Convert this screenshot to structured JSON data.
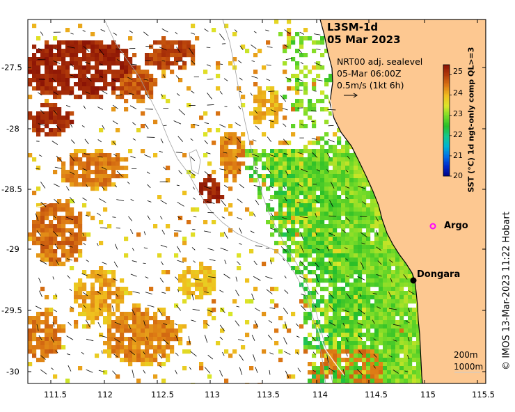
{
  "title": {
    "line1": "L3SM-1d",
    "line2": "05 Mar 2023"
  },
  "info": {
    "line1": "NRT00 adj. sealevel",
    "line2": "05-Mar 06:00Z",
    "line3": "0.5m/s (1kt 6h)"
  },
  "axes": {
    "lon_ticks": [
      "111.5",
      "112",
      "112.5",
      "113",
      "113.5",
      "114",
      "114.5",
      "115",
      "115.5"
    ],
    "lat_ticks": [
      "-27.5",
      "-28",
      "-28.5",
      "-29",
      "-29.5",
      "-30"
    ]
  },
  "colorbar": {
    "title": "SST (°C) 1d ngt-only comp QL>=3",
    "ticks": [
      "25",
      "24",
      "23",
      "22",
      "21",
      "20"
    ],
    "range": [
      20,
      25.5
    ]
  },
  "places": [
    {
      "name": "Argo",
      "marker": "magenta-ring",
      "color": "#ff00ff"
    },
    {
      "name": "Dongara",
      "marker": "black-dot",
      "color": "#000000"
    }
  ],
  "scale": {
    "line1": "200m",
    "line2": "1000m"
  },
  "credit": "© IMOS 13-Mar-2023 11:22 Hobart",
  "colors": {
    "land": "#fdc891",
    "warm": "#a02a08",
    "cool": "#48d026",
    "bathymetry": "#999999"
  }
}
